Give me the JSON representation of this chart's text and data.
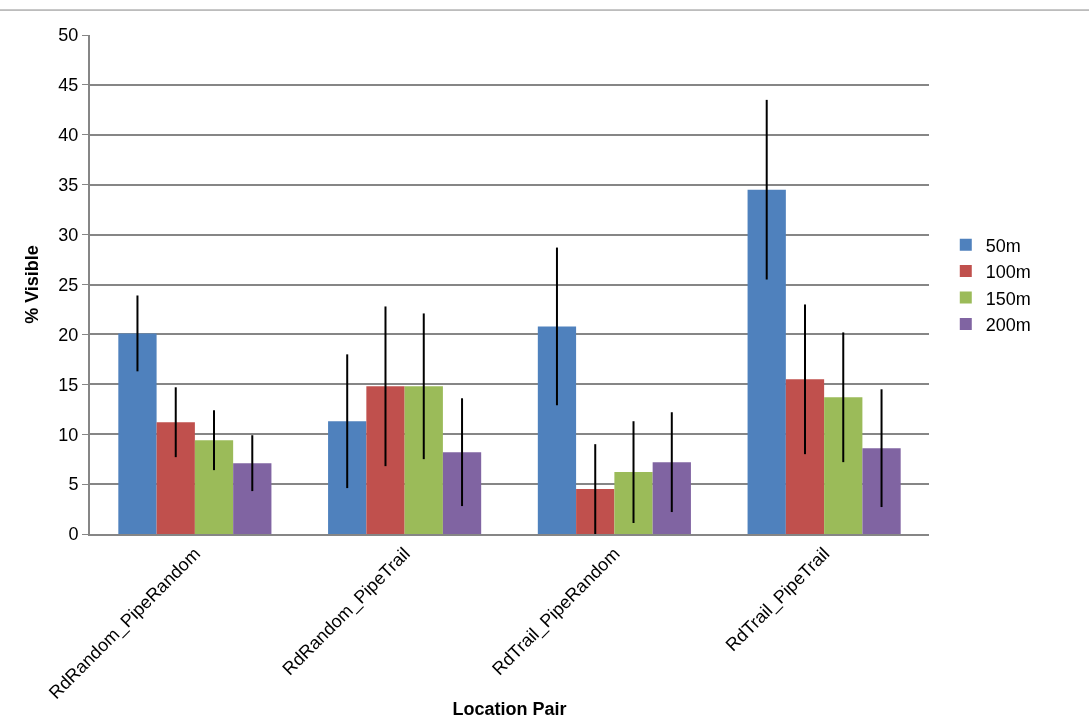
{
  "chart_data": {
    "type": "bar",
    "xlabel": "Location Pair",
    "ylabel": "% Visible",
    "categories": [
      "RdRandom_PipeRandom",
      "RdRandom_PipeTrail",
      "RdTrail_PipeRandom",
      "RdTrail_PipeTrail"
    ],
    "series": [
      {
        "name": "50m",
        "color": "#4f81bd",
        "values": [
          20.1,
          11.3,
          20.8,
          34.5
        ],
        "errors": [
          3.8,
          6.7,
          7.9,
          9
        ]
      },
      {
        "name": "100m",
        "color": "#c0504d",
        "values": [
          11.2,
          14.8,
          4.5,
          15.5
        ],
        "errors": [
          3.5,
          8,
          4.5,
          7.5
        ]
      },
      {
        "name": "150m",
        "color": "#9bbb59",
        "values": [
          9.4,
          14.8,
          6.2,
          13.7
        ],
        "errors": [
          3,
          7.3,
          5.1,
          6.5
        ]
      },
      {
        "name": "200m",
        "color": "#8064a2",
        "values": [
          7.1,
          8.2,
          7.2,
          8.6
        ],
        "errors": [
          2.8,
          5.4,
          5,
          5.9
        ]
      }
    ],
    "ylim": [
      0,
      50
    ],
    "yticks": [
      0,
      5,
      10,
      15,
      20,
      25,
      30,
      35,
      40,
      45,
      50
    ],
    "grid": "y",
    "legend": "right"
  }
}
